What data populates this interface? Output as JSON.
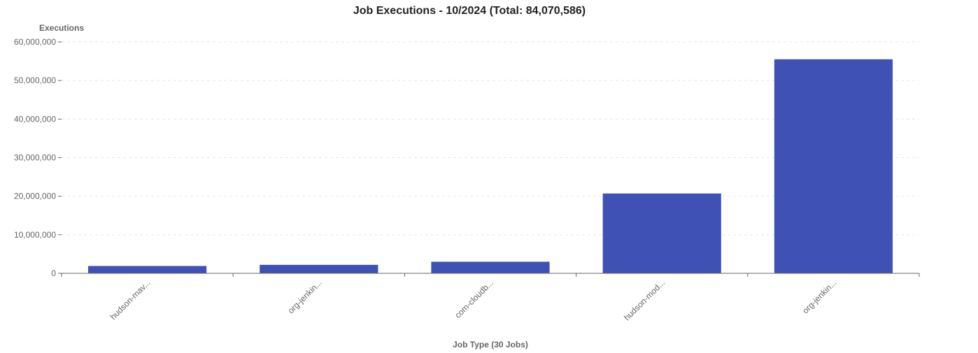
{
  "chart_data": {
    "type": "bar",
    "title": "Job Executions - 10/2024 (Total: 84,070,586)",
    "ylabel": "Executions",
    "xlabel": "Job Type (30 Jobs)",
    "categories": [
      "hudson-mav...",
      "org-jenkin...",
      "com-cloudb...",
      "hudson-mod...",
      "org-jenkin..."
    ],
    "values": [
      1900000,
      2200000,
      3000000,
      20700000,
      55500000
    ],
    "ylim": [
      0,
      60000000
    ],
    "yticks": [
      0,
      10000000,
      20000000,
      30000000,
      40000000,
      50000000,
      60000000
    ],
    "ytick_labels": [
      "0",
      "10,000,000",
      "20,000,000",
      "30,000,000",
      "40,000,000",
      "50,000,000",
      "60,000,000"
    ],
    "grid": true,
    "bar_color": "#3f51b5"
  }
}
